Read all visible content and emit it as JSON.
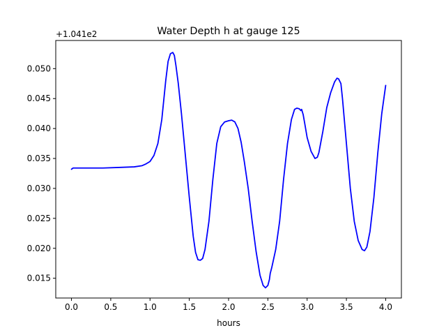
{
  "chart_data": {
    "type": "line",
    "title": "Water Depth h at gauge 125",
    "xlabel": "hours",
    "ylabel": "",
    "y_offset_label": "+1.041e2",
    "xlim": [
      -0.2,
      4.2
    ],
    "ylim": [
      0.0117,
      0.0547
    ],
    "x_ticks": [
      0.0,
      0.5,
      1.0,
      1.5,
      2.0,
      2.5,
      3.0,
      3.5,
      4.0
    ],
    "x_tick_labels": [
      "0.0",
      "0.5",
      "1.0",
      "1.5",
      "2.0",
      "2.5",
      "3.0",
      "3.5",
      "4.0"
    ],
    "y_ticks": [
      0.015,
      0.02,
      0.025,
      0.03,
      0.035,
      0.04,
      0.045,
      0.05
    ],
    "y_tick_labels": [
      "0.015",
      "0.020",
      "0.025",
      "0.030",
      "0.035",
      "0.040",
      "0.045",
      "0.050"
    ],
    "grid": false,
    "series": [
      {
        "color": "#0000ff",
        "x": [
          0.0,
          0.02,
          0.2,
          0.4,
          0.6,
          0.8,
          0.9,
          0.95,
          1.0,
          1.05,
          1.1,
          1.15,
          1.2,
          1.23,
          1.26,
          1.29,
          1.31,
          1.33,
          1.36,
          1.4,
          1.45,
          1.5,
          1.55,
          1.58,
          1.61,
          1.64,
          1.67,
          1.7,
          1.75,
          1.8,
          1.85,
          1.9,
          1.95,
          2.0,
          2.04,
          2.08,
          2.12,
          2.16,
          2.2,
          2.25,
          2.3,
          2.35,
          2.4,
          2.44,
          2.47,
          2.5,
          2.52,
          2.53,
          2.55,
          2.6,
          2.65,
          2.7,
          2.75,
          2.8,
          2.84,
          2.87,
          2.9,
          2.92,
          2.93,
          2.95,
          2.97,
          3.0,
          3.05,
          3.1,
          3.13,
          3.15,
          3.2,
          3.25,
          3.3,
          3.35,
          3.38,
          3.4,
          3.43,
          3.45,
          3.5,
          3.55,
          3.6,
          3.65,
          3.7,
          3.73,
          3.76,
          3.8,
          3.85,
          3.9,
          3.95,
          4.0
        ],
        "y": [
          0.0332,
          0.0334,
          0.0334,
          0.0334,
          0.0335,
          0.0336,
          0.0338,
          0.0341,
          0.0345,
          0.0355,
          0.0375,
          0.0415,
          0.048,
          0.0512,
          0.0525,
          0.0527,
          0.0522,
          0.0505,
          0.0475,
          0.0425,
          0.0355,
          0.0285,
          0.022,
          0.0193,
          0.0181,
          0.018,
          0.0183,
          0.0198,
          0.0245,
          0.0315,
          0.0375,
          0.0403,
          0.0411,
          0.0413,
          0.0414,
          0.0411,
          0.04,
          0.0377,
          0.0345,
          0.03,
          0.0245,
          0.0195,
          0.0155,
          0.0138,
          0.0134,
          0.0138,
          0.0148,
          0.0158,
          0.0168,
          0.0198,
          0.0245,
          0.0315,
          0.0375,
          0.0415,
          0.0432,
          0.0434,
          0.0433,
          0.043,
          0.0432,
          0.0423,
          0.0408,
          0.0385,
          0.0362,
          0.035,
          0.0352,
          0.036,
          0.0395,
          0.0435,
          0.046,
          0.0478,
          0.0484,
          0.0483,
          0.0475,
          0.045,
          0.0375,
          0.03,
          0.0245,
          0.0213,
          0.0198,
          0.0196,
          0.0202,
          0.0228,
          0.0285,
          0.036,
          0.0425,
          0.0472
        ]
      }
    ]
  }
}
